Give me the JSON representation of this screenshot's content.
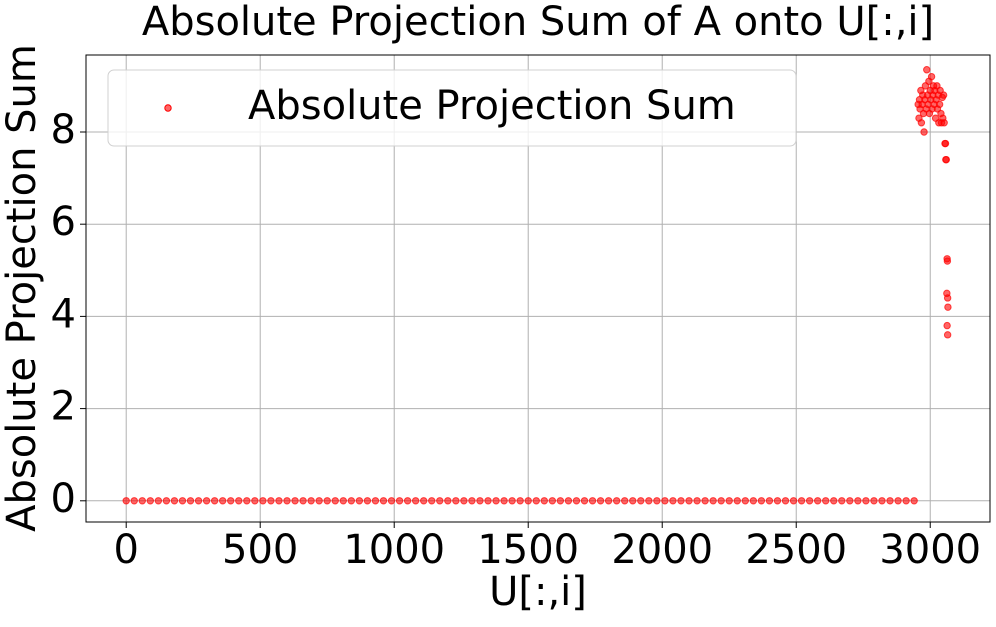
{
  "chart_data": {
    "type": "scatter",
    "title": "Absolute Projection Sum of A onto U[:,i]",
    "x_label": "U[:,i]",
    "y_label": "Absolute Projection Sum",
    "xlim": [
      -150,
      3223
    ],
    "ylim": [
      -0.46,
      9.67
    ],
    "xticks": [
      0,
      500,
      1000,
      1500,
      2000,
      2500,
      3000
    ],
    "yticks": [
      0,
      2,
      4,
      6,
      8
    ],
    "grid": true,
    "legend": "upper left",
    "series": [
      {
        "name": "Absolute Projection Sum",
        "color": "#ff0000",
        "x": [
          0,
          30,
          60,
          90,
          120,
          150,
          180,
          210,
          240,
          270,
          300,
          330,
          360,
          390,
          420,
          450,
          480,
          510,
          540,
          570,
          600,
          630,
          660,
          690,
          720,
          750,
          780,
          810,
          840,
          870,
          900,
          930,
          960,
          990,
          1020,
          1050,
          1080,
          1110,
          1140,
          1170,
          1200,
          1230,
          1260,
          1290,
          1320,
          1350,
          1380,
          1410,
          1440,
          1470,
          1500,
          1530,
          1560,
          1590,
          1620,
          1650,
          1680,
          1710,
          1740,
          1770,
          1800,
          1830,
          1860,
          1890,
          1920,
          1950,
          1980,
          2010,
          2040,
          2070,
          2100,
          2130,
          2160,
          2190,
          2220,
          2250,
          2280,
          2310,
          2340,
          2370,
          2400,
          2430,
          2460,
          2490,
          2520,
          2550,
          2580,
          2610,
          2640,
          2670,
          2700,
          2730,
          2760,
          2790,
          2820,
          2850,
          2880,
          2910,
          2940,
          2955,
          2958,
          2960,
          2962,
          2965,
          2967,
          2970,
          2972,
          2975,
          2977,
          2980,
          2982,
          2985,
          2987,
          2990,
          2992,
          2995,
          2997,
          3000,
          3002,
          3005,
          3007,
          3010,
          3012,
          3015,
          3017,
          3020,
          3022,
          3025,
          3027,
          3030,
          3032,
          3035,
          3037,
          3040,
          3042,
          3045,
          3047,
          3050,
          3052,
          3055,
          3057,
          3058,
          3060,
          3063,
          3064,
          3062,
          3065,
          3066,
          3063,
          3065
        ],
        "y": [
          0,
          0,
          0,
          0,
          0,
          0,
          0,
          0,
          0,
          0,
          0,
          0,
          0,
          0,
          0,
          0,
          0,
          0,
          0,
          0,
          0,
          0,
          0,
          0,
          0,
          0,
          0,
          0,
          0,
          0,
          0,
          0,
          0,
          0,
          0,
          0,
          0,
          0,
          0,
          0,
          0,
          0,
          0,
          0,
          0,
          0,
          0,
          0,
          0,
          0,
          0,
          0,
          0,
          0,
          0,
          0,
          0,
          0,
          0,
          0,
          0,
          0,
          0,
          0,
          0,
          0,
          0,
          0,
          0,
          0,
          0,
          0,
          0,
          0,
          0,
          0,
          0,
          0,
          0,
          0,
          0,
          0,
          0,
          0,
          0,
          0,
          0,
          0,
          0,
          0,
          0,
          0,
          0,
          0,
          0,
          0,
          0,
          0,
          0,
          8.6,
          8.3,
          8.7,
          8.5,
          8.9,
          8.2,
          8.6,
          8.8,
          8.4,
          8.0,
          8.7,
          9.0,
          8.5,
          9.35,
          8.8,
          8.6,
          9.1,
          8.4,
          8.9,
          8.7,
          9.2,
          8.5,
          8.8,
          9.0,
          8.6,
          8.9,
          8.3,
          8.7,
          9.0,
          8.5,
          8.8,
          8.2,
          8.6,
          8.9,
          8.4,
          8.2,
          8.75,
          8.3,
          8.8,
          8.2,
          7.75,
          7.75,
          7.4,
          7.4,
          5.25,
          5.2,
          4.5,
          4.4,
          4.2,
          3.8,
          3.6
        ]
      }
    ]
  }
}
